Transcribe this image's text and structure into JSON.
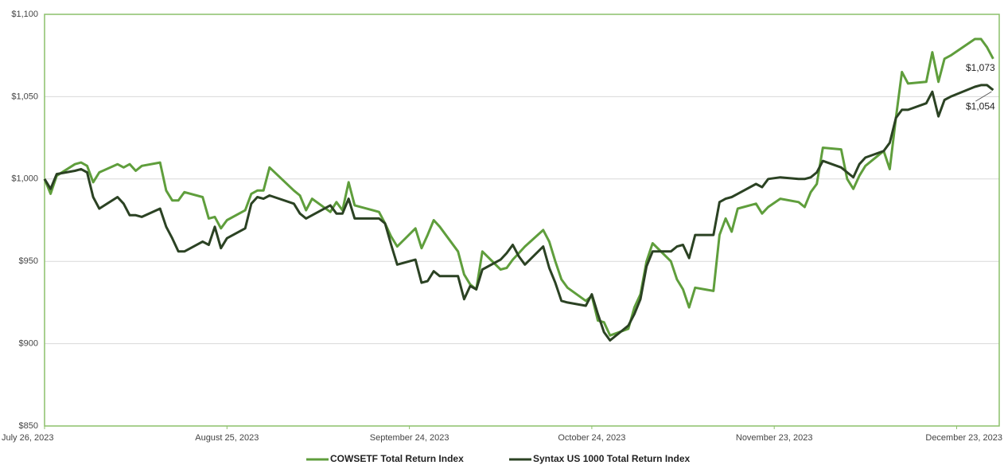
{
  "chart_data": {
    "type": "line",
    "x": [
      "2023-07-26",
      "2023-07-27",
      "2023-07-28",
      "2023-07-31",
      "2023-08-01",
      "2023-08-02",
      "2023-08-03",
      "2023-08-04",
      "2023-08-07",
      "2023-08-08",
      "2023-08-09",
      "2023-08-10",
      "2023-08-11",
      "2023-08-14",
      "2023-08-15",
      "2023-08-16",
      "2023-08-17",
      "2023-08-18",
      "2023-08-21",
      "2023-08-22",
      "2023-08-23",
      "2023-08-24",
      "2023-08-25",
      "2023-08-28",
      "2023-08-29",
      "2023-08-30",
      "2023-08-31",
      "2023-09-01",
      "2023-09-05",
      "2023-09-06",
      "2023-09-07",
      "2023-09-08",
      "2023-09-11",
      "2023-09-12",
      "2023-09-13",
      "2023-09-14",
      "2023-09-15",
      "2023-09-18",
      "2023-09-19",
      "2023-09-20",
      "2023-09-21",
      "2023-09-22",
      "2023-09-25",
      "2023-09-26",
      "2023-09-27",
      "2023-09-28",
      "2023-09-29",
      "2023-10-02",
      "2023-10-03",
      "2023-10-04",
      "2023-10-05",
      "2023-10-06",
      "2023-10-09",
      "2023-10-10",
      "2023-10-11",
      "2023-10-12",
      "2023-10-13",
      "2023-10-16",
      "2023-10-17",
      "2023-10-18",
      "2023-10-19",
      "2023-10-20",
      "2023-10-23",
      "2023-10-24",
      "2023-10-25",
      "2023-10-26",
      "2023-10-27",
      "2023-10-30",
      "2023-10-31",
      "2023-11-01",
      "2023-11-02",
      "2023-11-03",
      "2023-11-06",
      "2023-11-07",
      "2023-11-08",
      "2023-11-09",
      "2023-11-10",
      "2023-11-13",
      "2023-11-14",
      "2023-11-15",
      "2023-11-16",
      "2023-11-17",
      "2023-11-20",
      "2023-11-21",
      "2023-11-22",
      "2023-11-24",
      "2023-11-27",
      "2023-11-28",
      "2023-11-29",
      "2023-11-30",
      "2023-12-01",
      "2023-12-04",
      "2023-12-05",
      "2023-12-06",
      "2023-12-07",
      "2023-12-08",
      "2023-12-11",
      "2023-12-12",
      "2023-12-13",
      "2023-12-14",
      "2023-12-15",
      "2023-12-18",
      "2023-12-19",
      "2023-12-20",
      "2023-12-21",
      "2023-12-22",
      "2023-12-26",
      "2023-12-27",
      "2023-12-28",
      "2023-12-29"
    ],
    "series": [
      {
        "name": "COWSETF Total Return Index",
        "color": "#5f9e3c",
        "end_label": "$1,073",
        "values": [
          1000,
          991,
          1002,
          1009,
          1010,
          1008,
          998,
          1004,
          1009,
          1007,
          1009,
          1005,
          1008,
          1010,
          993,
          987,
          987,
          992,
          989,
          976,
          977,
          970,
          975,
          981,
          991,
          993,
          993,
          1007,
          993,
          990,
          981,
          988,
          980,
          986,
          981,
          998,
          984,
          981,
          980,
          973,
          965,
          959,
          970,
          958,
          966,
          975,
          971,
          956,
          942,
          936,
          933,
          956,
          945,
          946,
          951,
          955,
          959,
          969,
          962,
          950,
          939,
          934,
          926,
          929,
          914,
          913,
          905,
          909,
          922,
          930,
          950,
          961,
          950,
          939,
          933,
          922,
          934,
          932,
          966,
          976,
          968,
          982,
          985,
          979,
          983,
          988,
          986,
          983,
          992,
          997,
          1019,
          1018,
          1000,
          994,
          1002,
          1008,
          1017,
          1006,
          1037,
          1065,
          1058,
          1059,
          1077,
          1059,
          1073,
          1075,
          1085,
          1085,
          1080,
          1073
        ]
      },
      {
        "name": "Syntax US 1000 Total Return Index",
        "color": "#2b4223",
        "end_label": "$1,054",
        "values": [
          1000,
          994,
          1003,
          1005,
          1006,
          1004,
          989,
          982,
          989,
          985,
          978,
          978,
          977,
          982,
          971,
          964,
          956,
          956,
          962,
          960,
          971,
          958,
          964,
          970,
          985,
          989,
          988,
          990,
          985,
          979,
          976,
          978,
          984,
          979,
          979,
          988,
          976,
          976,
          976,
          973,
          960,
          948,
          951,
          937,
          938,
          944,
          941,
          941,
          927,
          935,
          933,
          945,
          951,
          955,
          960,
          953,
          948,
          959,
          946,
          937,
          926,
          925,
          923,
          930,
          918,
          907,
          902,
          911,
          918,
          927,
          947,
          956,
          956,
          959,
          960,
          952,
          966,
          966,
          986,
          988,
          989,
          991,
          997,
          995,
          1000,
          1001,
          1000,
          1000,
          1001,
          1004,
          1011,
          1007,
          1004,
          1001,
          1009,
          1013,
          1017,
          1022,
          1037,
          1042,
          1042,
          1046,
          1053,
          1038,
          1048,
          1050,
          1056,
          1057,
          1057,
          1054
        ]
      }
    ],
    "xlim": [
      "2023-07-26",
      "2023-12-30"
    ],
    "xticks": [
      {
        "value": "2023-07-26",
        "label": "July 26, 2023"
      },
      {
        "value": "2023-08-25",
        "label": "August 25, 2023"
      },
      {
        "value": "2023-09-24",
        "label": "September 24, 2023"
      },
      {
        "value": "2023-10-24",
        "label": "October 24, 2023"
      },
      {
        "value": "2023-11-23",
        "label": "November 23, 2023"
      },
      {
        "value": "2023-12-23",
        "label": "December 23, 2023"
      }
    ],
    "ylim": [
      850,
      1100
    ],
    "yticks": [
      {
        "value": 850,
        "label": "$850"
      },
      {
        "value": 900,
        "label": "$900"
      },
      {
        "value": 950,
        "label": "$950"
      },
      {
        "value": 1000,
        "label": "$1,000"
      },
      {
        "value": 1050,
        "label": "$1,050"
      },
      {
        "value": 1100,
        "label": "$1,100"
      }
    ],
    "grid": true,
    "legend": "bottom",
    "frame_color": "#8cc06a"
  }
}
